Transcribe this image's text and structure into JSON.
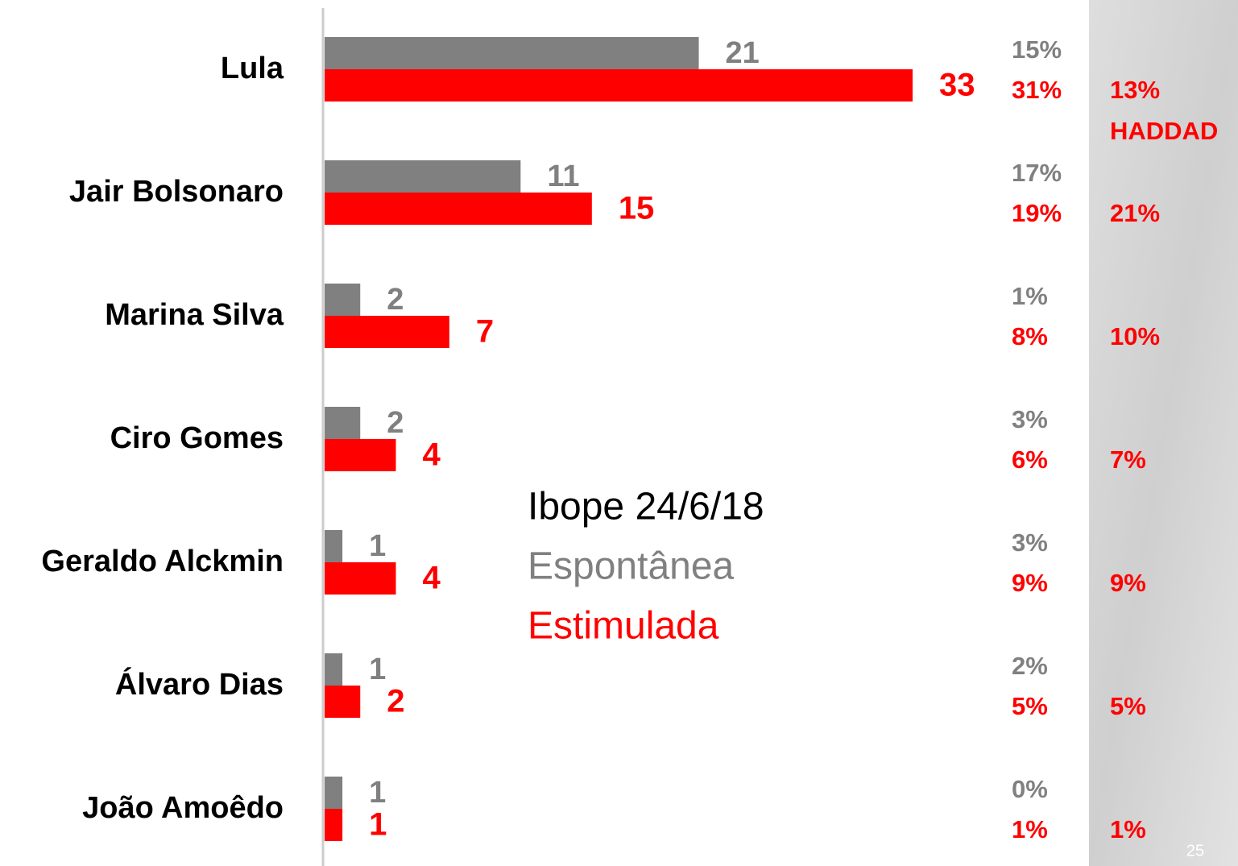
{
  "chart_data": {
    "type": "bar",
    "orientation": "horizontal",
    "title": "Ibope 24/6/18",
    "categories": [
      "Lula",
      "Jair Bolsonaro",
      "Marina Silva",
      "Ciro Gomes",
      "Geraldo Alckmin",
      "Álvaro Dias",
      "João Amoêdo"
    ],
    "series": [
      {
        "name": "Espontânea",
        "color": "#808080",
        "values": [
          21,
          11,
          2,
          2,
          1,
          1,
          1
        ]
      },
      {
        "name": "Estimulada",
        "color": "#ff0000",
        "values": [
          33,
          15,
          7,
          4,
          4,
          2,
          1
        ]
      }
    ],
    "xlim": [
      0,
      33
    ],
    "side_columns": [
      {
        "color": "#808080",
        "labels": [
          "15%",
          "17%",
          "1%",
          "3%",
          "3%",
          "2%",
          "0%"
        ]
      },
      {
        "color": "#ff0000",
        "labels": [
          "31%",
          "19%",
          "8%",
          "6%",
          "9%",
          "5%",
          "1%"
        ]
      },
      {
        "color": "#ff0000",
        "labels": [
          "13%",
          "21%",
          "10%",
          "7%",
          "9%",
          "5%",
          "1%"
        ]
      }
    ],
    "annotation": "HADDAD",
    "page_number": "25"
  }
}
